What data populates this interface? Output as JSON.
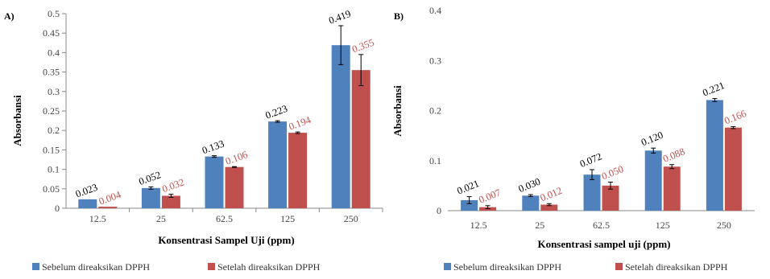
{
  "colors": {
    "series1": "#4f81bd",
    "series2": "#c0504d",
    "label1": "#000000",
    "label2": "#c0504d"
  },
  "chart_data": [
    {
      "type": "bar",
      "panel": "A)",
      "categories": [
        "12.5",
        "25",
        "62.5",
        "125",
        "250"
      ],
      "xlabel": "Konsentrasi Sampel Uji (ppm)",
      "ylabel": "Absorbansi",
      "ylim": [
        0,
        0.5
      ],
      "yticks": [
        "0",
        "0.05",
        "0.1",
        "0.15",
        "0.2",
        "0.25",
        "0.3",
        "0.35",
        "0.4",
        "0.45",
        "0.5"
      ],
      "grid": false,
      "legend_position": "bottom",
      "series": [
        {
          "name": "Sebelum direaksikan DPPH",
          "values": [
            0.023,
            0.052,
            0.133,
            0.223,
            0.419
          ],
          "labels": [
            "0.023",
            "0.052",
            "0.133",
            "0.223",
            "0.419"
          ],
          "errors": [
            0.0,
            0.003,
            0.002,
            0.002,
            0.05
          ]
        },
        {
          "name": "Setelah direaksikan DPPH",
          "values": [
            0.004,
            0.032,
            0.106,
            0.194,
            0.355
          ],
          "labels": [
            "0.004",
            "0.032",
            "0.106",
            "0.194",
            "0.355"
          ],
          "errors": [
            0.0,
            0.004,
            0.001,
            0.002,
            0.04
          ]
        }
      ]
    },
    {
      "type": "bar",
      "panel": "B)",
      "categories": [
        "12.5",
        "25",
        "62.5",
        "125",
        "250"
      ],
      "xlabel": "Konsentrasi sampel uji (ppm)",
      "ylabel": "Absorbansi",
      "ylim": [
        0,
        0.4
      ],
      "yticks": [
        "0",
        "0.1",
        "0.2",
        "0.3",
        "0.4"
      ],
      "grid": false,
      "legend_position": "bottom",
      "series": [
        {
          "name": "Sebelum direaksikan DPPH",
          "values": [
            0.021,
            0.03,
            0.072,
            0.12,
            0.221
          ],
          "labels": [
            "0.021",
            "0.030",
            "0.072",
            "0.120",
            "0.221"
          ],
          "errors": [
            0.007,
            0.002,
            0.01,
            0.005,
            0.003
          ]
        },
        {
          "name": "Setelah direaksikan DPPH",
          "values": [
            0.007,
            0.012,
            0.05,
            0.088,
            0.166
          ],
          "labels": [
            "0.007",
            "0.012",
            "0.050",
            "0.088",
            "0.166"
          ],
          "errors": [
            0.003,
            0.002,
            0.007,
            0.004,
            0.002
          ]
        }
      ]
    }
  ]
}
